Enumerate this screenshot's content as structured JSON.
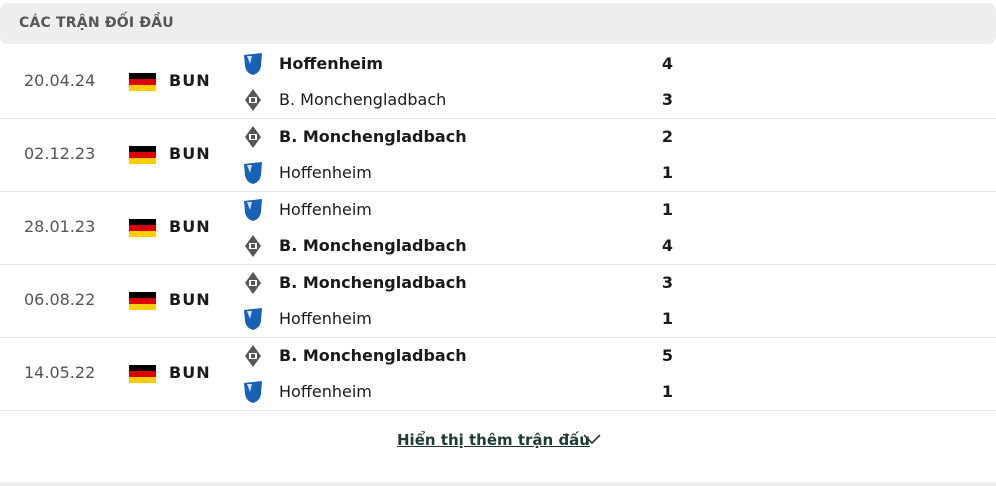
{
  "header": {
    "title": "CÁC TRẬN ĐỐI ĐẦU"
  },
  "colors": {
    "hoffenheim": "#1961b5",
    "gladbach": "#555555",
    "link": "#1e3b36"
  },
  "matches": [
    {
      "date": "20.04.24",
      "league": "BUN",
      "home": {
        "name": "Hoffenheim",
        "score": "4",
        "logo": "hoffenheim",
        "winner": true
      },
      "away": {
        "name": "B. Monchengladbach",
        "score": "3",
        "logo": "gladbach",
        "winner": false
      }
    },
    {
      "date": "02.12.23",
      "league": "BUN",
      "home": {
        "name": "B. Monchengladbach",
        "score": "2",
        "logo": "gladbach",
        "winner": true
      },
      "away": {
        "name": "Hoffenheim",
        "score": "1",
        "logo": "hoffenheim",
        "winner": false
      }
    },
    {
      "date": "28.01.23",
      "league": "BUN",
      "home": {
        "name": "Hoffenheim",
        "score": "1",
        "logo": "hoffenheim",
        "winner": false
      },
      "away": {
        "name": "B. Monchengladbach",
        "score": "4",
        "logo": "gladbach",
        "winner": true
      }
    },
    {
      "date": "06.08.22",
      "league": "BUN",
      "home": {
        "name": "B. Monchengladbach",
        "score": "3",
        "logo": "gladbach",
        "winner": true
      },
      "away": {
        "name": "Hoffenheim",
        "score": "1",
        "logo": "hoffenheim",
        "winner": false
      }
    },
    {
      "date": "14.05.22",
      "league": "BUN",
      "home": {
        "name": "B. Monchengladbach",
        "score": "5",
        "logo": "gladbach",
        "winner": true
      },
      "away": {
        "name": "Hoffenheim",
        "score": "1",
        "logo": "hoffenheim",
        "winner": false
      }
    }
  ],
  "show_more": "Hiển thị thêm trận đấu"
}
